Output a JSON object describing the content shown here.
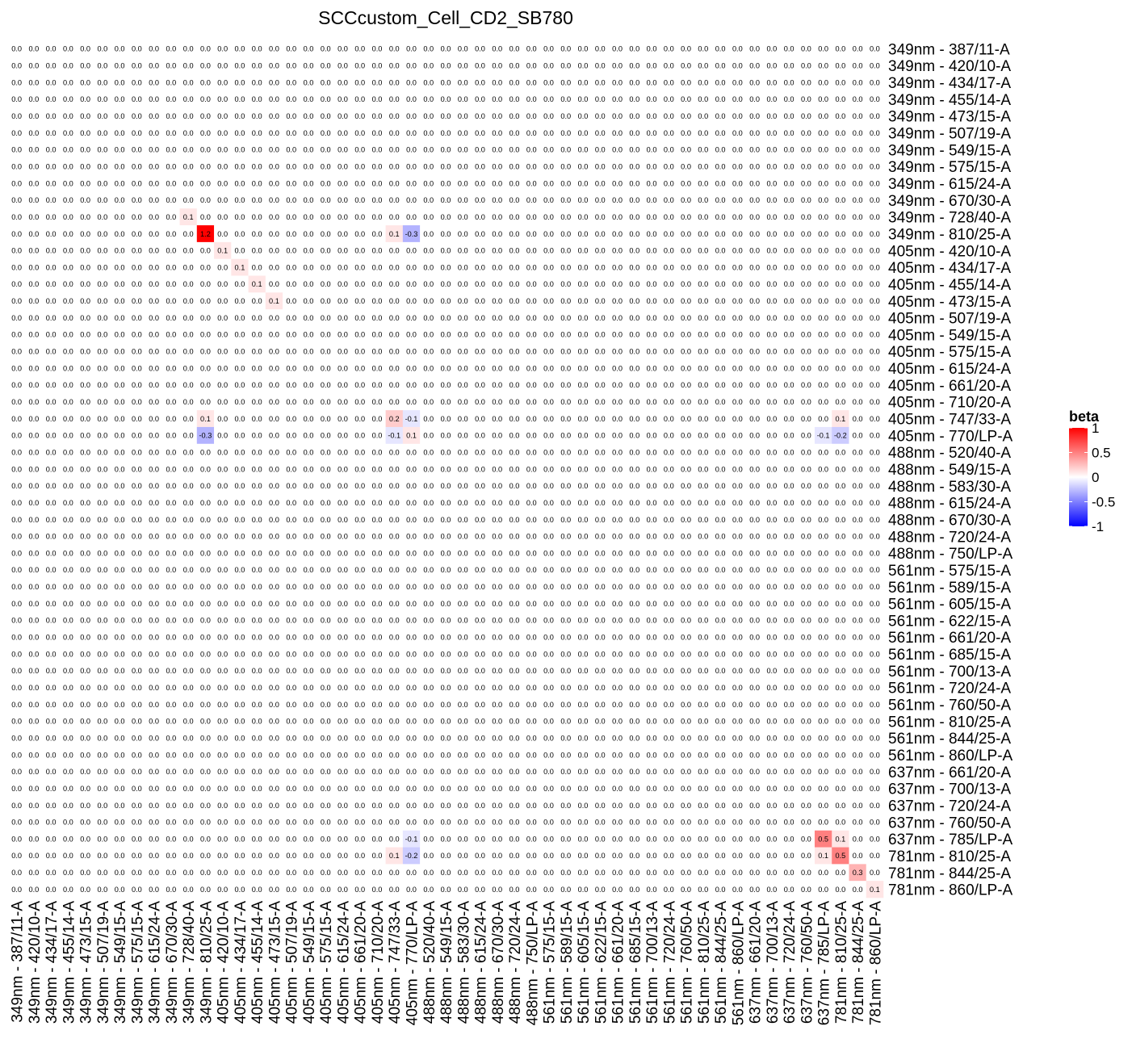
{
  "chart_data": {
    "type": "heatmap",
    "title": "SCCcustom_Cell_CD2_SB780",
    "xlabel": "",
    "ylabel": "",
    "categories": [
      "349nm - 387/11-A",
      "349nm - 420/10-A",
      "349nm - 434/17-A",
      "349nm - 455/14-A",
      "349nm - 473/15-A",
      "349nm - 507/19-A",
      "349nm - 549/15-A",
      "349nm - 575/15-A",
      "349nm - 615/24-A",
      "349nm - 670/30-A",
      "349nm - 728/40-A",
      "349nm - 810/25-A",
      "405nm - 420/10-A",
      "405nm - 434/17-A",
      "405nm - 455/14-A",
      "405nm - 473/15-A",
      "405nm - 507/19-A",
      "405nm - 549/15-A",
      "405nm - 575/15-A",
      "405nm - 615/24-A",
      "405nm - 661/20-A",
      "405nm - 710/20-A",
      "405nm - 747/33-A",
      "405nm - 770/LP-A",
      "488nm - 520/40-A",
      "488nm - 549/15-A",
      "488nm - 583/30-A",
      "488nm - 615/24-A",
      "488nm - 670/30-A",
      "488nm - 720/24-A",
      "488nm - 750/LP-A",
      "561nm - 575/15-A",
      "561nm - 589/15-A",
      "561nm - 605/15-A",
      "561nm - 622/15-A",
      "561nm - 661/20-A",
      "561nm - 685/15-A",
      "561nm - 700/13-A",
      "561nm - 720/24-A",
      "561nm - 760/50-A",
      "561nm - 810/25-A",
      "561nm - 844/25-A",
      "561nm - 860/LP-A",
      "637nm - 661/20-A",
      "637nm - 700/13-A",
      "637nm - 720/24-A",
      "637nm - 760/50-A",
      "637nm - 785/LP-A",
      "781nm - 810/25-A",
      "781nm - 844/25-A",
      "781nm - 860/LP-A"
    ],
    "default_value": 0.0,
    "default_label": "0.0",
    "nonzero_cells": [
      {
        "row": 10,
        "col": 10,
        "value": 0.1
      },
      {
        "row": 11,
        "col": 11,
        "value": 1.2
      },
      {
        "row": 11,
        "col": 22,
        "value": 0.1
      },
      {
        "row": 11,
        "col": 23,
        "value": -0.3
      },
      {
        "row": 12,
        "col": 12,
        "value": 0.1
      },
      {
        "row": 13,
        "col": 13,
        "value": 0.1
      },
      {
        "row": 14,
        "col": 14,
        "value": 0.1
      },
      {
        "row": 15,
        "col": 15,
        "value": 0.1
      },
      {
        "row": 22,
        "col": 11,
        "value": 0.1
      },
      {
        "row": 22,
        "col": 22,
        "value": 0.2
      },
      {
        "row": 22,
        "col": 23,
        "value": -0.1
      },
      {
        "row": 22,
        "col": 48,
        "value": 0.1
      },
      {
        "row": 23,
        "col": 11,
        "value": -0.3
      },
      {
        "row": 23,
        "col": 22,
        "value": -0.1
      },
      {
        "row": 23,
        "col": 23,
        "value": 0.1
      },
      {
        "row": 23,
        "col": 47,
        "value": -0.1
      },
      {
        "row": 23,
        "col": 48,
        "value": -0.2
      },
      {
        "row": 47,
        "col": 23,
        "value": -0.1
      },
      {
        "row": 47,
        "col": 47,
        "value": 0.5
      },
      {
        "row": 47,
        "col": 48,
        "value": 0.1
      },
      {
        "row": 48,
        "col": 22,
        "value": 0.1
      },
      {
        "row": 48,
        "col": 23,
        "value": -0.2
      },
      {
        "row": 48,
        "col": 47,
        "value": 0.1
      },
      {
        "row": 48,
        "col": 48,
        "value": 0.5
      },
      {
        "row": 49,
        "col": 49,
        "value": 0.3
      },
      {
        "row": 50,
        "col": 50,
        "value": 0.1
      }
    ],
    "color_scale": {
      "low": "#0000ff",
      "mid": "#ffffff",
      "high": "#ff0000",
      "limits": [
        -1,
        1
      ]
    },
    "legend": {
      "title": "beta",
      "position": "right",
      "ticks": [
        1,
        0.5,
        0,
        -0.5,
        -1
      ],
      "tick_labels": [
        "1",
        "0.5",
        "0",
        "-0.5",
        "-1"
      ]
    },
    "grid": false
  }
}
